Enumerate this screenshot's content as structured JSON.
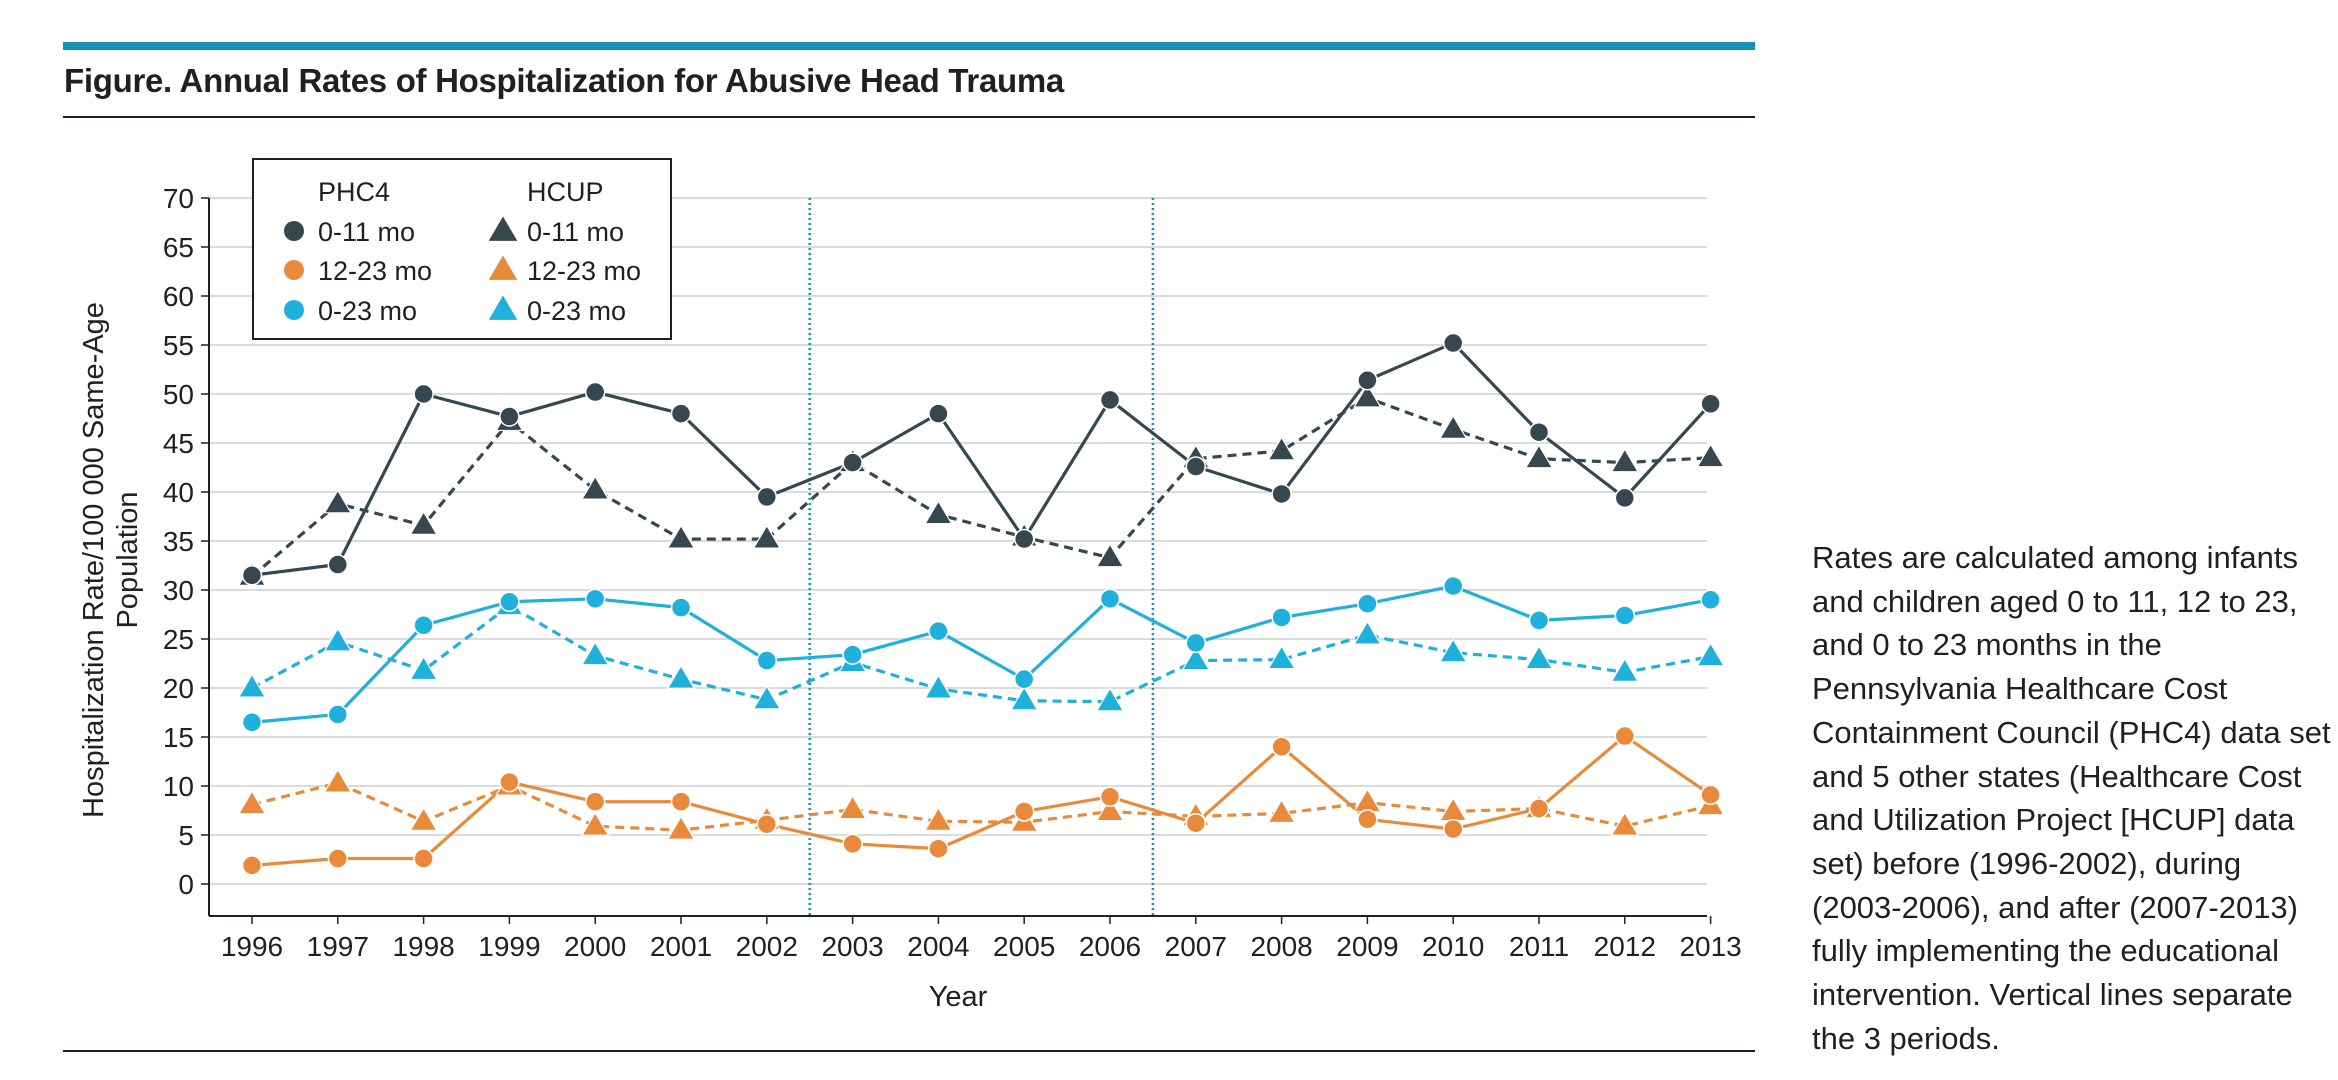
{
  "figure": {
    "title": "Figure. Annual Rates of Hospitalization for Abusive Head Trauma",
    "caption_lines": [
      "Rates are calculated among infants",
      "and children aged 0 to 11, 12 to 23,",
      "and 0 to 23 months in the",
      "Pennsylvania Healthcare Cost",
      "Containment Council (PHC4) data set",
      "and 5 other states (Healthcare Cost",
      "and Utilization Project [HCUP] data",
      "set) before (1996-2002), during",
      "(2003-2006), and after (2007-2013)",
      "fully implementing the educational",
      "intervention. Vertical lines separate",
      "the 3 periods."
    ]
  },
  "colors": {
    "dark": "#35474f",
    "orange": "#e98a3a",
    "blue": "#1fb0dc",
    "grid": "#cfcfcf",
    "accent_bar": "#1591b3"
  },
  "chart_data": {
    "type": "line",
    "xlabel": "Year",
    "ylabel_lines": [
      "Hospitalization Rate/100 000 Same-Age",
      "Population"
    ],
    "ylim": [
      0,
      70
    ],
    "yticks": [
      0,
      5,
      10,
      15,
      20,
      25,
      30,
      35,
      40,
      45,
      50,
      55,
      60,
      65,
      70
    ],
    "x": [
      "1996",
      "1997",
      "1998",
      "1999",
      "2000",
      "2001",
      "2002",
      "2003",
      "2004",
      "2005",
      "2006",
      "2007",
      "2008",
      "2009",
      "2010",
      "2011",
      "2012",
      "2013"
    ],
    "grid": "horizontal",
    "period_separators_after": [
      "2002",
      "2006"
    ],
    "legend": {
      "placement": "top-left",
      "group_titles": [
        "PHC4",
        "HCUP"
      ]
    },
    "series": [
      {
        "group": "PHC4",
        "name": "0-11 mo",
        "marker": "circle",
        "dash": false,
        "color": "#35474f",
        "values": [
          31.5,
          32.6,
          50.0,
          47.7,
          50.2,
          48.0,
          39.5,
          43.0,
          48.0,
          35.2,
          49.4,
          42.6,
          39.8,
          51.4,
          55.2,
          46.1,
          39.4,
          49.0
        ]
      },
      {
        "group": "PHC4",
        "name": "12-23 mo",
        "marker": "circle",
        "dash": false,
        "color": "#e98a3a",
        "values": [
          1.9,
          2.6,
          2.6,
          10.4,
          8.4,
          8.4,
          6.1,
          4.1,
          3.6,
          7.4,
          8.9,
          6.2,
          14.0,
          6.6,
          5.6,
          7.7,
          15.1,
          9.1
        ]
      },
      {
        "group": "PHC4",
        "name": "0-23 mo",
        "marker": "circle",
        "dash": false,
        "color": "#1fb0dc",
        "values": [
          16.5,
          17.3,
          26.4,
          28.8,
          29.1,
          28.2,
          22.8,
          23.4,
          25.8,
          20.9,
          29.1,
          24.6,
          27.2,
          28.6,
          30.4,
          26.9,
          27.4,
          29.0
        ]
      },
      {
        "group": "HCUP",
        "name": "0-11 mo",
        "marker": "triangle",
        "dash": true,
        "color": "#35474f",
        "values": [
          31.4,
          38.8,
          36.6,
          47.2,
          40.2,
          35.2,
          35.2,
          43.0,
          37.7,
          35.4,
          33.3,
          43.4,
          44.2,
          49.6,
          46.4,
          43.4,
          43.0,
          43.5
        ]
      },
      {
        "group": "HCUP",
        "name": "12-23 mo",
        "marker": "triangle",
        "dash": true,
        "color": "#e98a3a",
        "values": [
          8.1,
          10.3,
          6.4,
          10.0,
          5.9,
          5.5,
          6.5,
          7.6,
          6.4,
          6.3,
          7.4,
          6.9,
          7.2,
          8.3,
          7.4,
          7.7,
          5.9,
          8.0
        ]
      },
      {
        "group": "HCUP",
        "name": "0-23 mo",
        "marker": "triangle",
        "dash": true,
        "color": "#1fb0dc",
        "values": [
          20.0,
          24.7,
          21.8,
          28.4,
          23.3,
          20.9,
          18.8,
          22.6,
          19.9,
          18.7,
          18.6,
          22.8,
          22.9,
          25.4,
          23.6,
          22.9,
          21.6,
          23.2
        ]
      }
    ]
  }
}
